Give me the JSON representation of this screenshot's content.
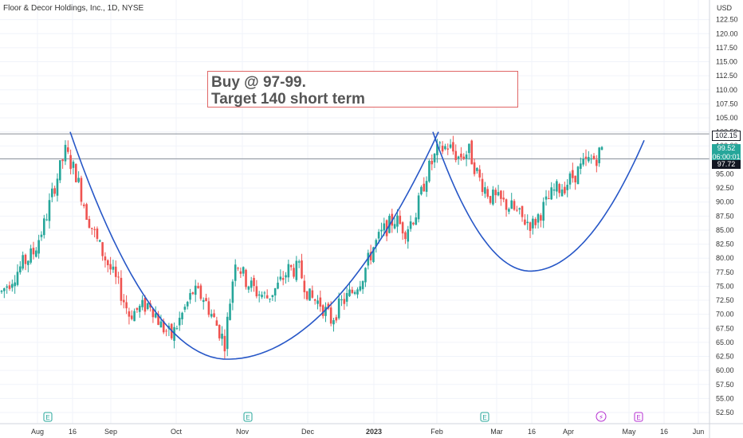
{
  "header": {
    "symbol_title": "Floor & Decor Holdings, Inc., 1D, NYSE",
    "currency": "USD"
  },
  "annotation": {
    "line1": "Buy @ 97-99.",
    "line2": "Target 140 short term"
  },
  "price_tags": {
    "resistance": {
      "value": "102.15",
      "bg": "#ffffff",
      "color": "#131722"
    },
    "last": {
      "value": "99.52",
      "countdown": "06:00:01",
      "bg": "#26a69a",
      "color": "#ffffff"
    },
    "support": {
      "value": "97.72",
      "bg": "#131722",
      "color": "#ffffff"
    }
  },
  "colors": {
    "up": "#26a69a",
    "down": "#ef5350",
    "pattern": "#2757c7",
    "grid": "#f0f3fa",
    "hline": "#8a8f98"
  },
  "chart_data": {
    "type": "candlestick",
    "ylim": [
      50.8,
      126.0
    ],
    "y_ticks": [
      52.5,
      55.0,
      57.5,
      60.0,
      62.5,
      65.0,
      67.5,
      70.0,
      72.5,
      75.0,
      77.5,
      80.0,
      82.5,
      85.0,
      87.5,
      90.0,
      92.5,
      95.0,
      97.5,
      100.0,
      102.5,
      105.0,
      107.5,
      110.0,
      112.5,
      115.0,
      117.5,
      120.0,
      122.5
    ],
    "x_labels": [
      "Aug",
      "16",
      "Sep",
      "Oct",
      "Nov",
      "Dec",
      "2023",
      "Feb",
      "Mar",
      "16",
      "Apr",
      "May",
      "16",
      "Jun"
    ],
    "horizontal_levels": [
      102.15,
      97.72
    ],
    "earnings_markers": [
      "E",
      "E",
      "E",
      "E"
    ],
    "event_marker": "⚡",
    "cup_and_handle": {
      "left_rim": 102.5,
      "cup_bottom": 62.0,
      "right_rim": 102.5,
      "handle_bottom": 77.7,
      "projection_end": 101.0
    },
    "anchors": [
      [
        0,
        74.0
      ],
      [
        8,
        79.0
      ],
      [
        12,
        81.0
      ],
      [
        16,
        86.0
      ],
      [
        20,
        93.0
      ],
      [
        24,
        99.0
      ],
      [
        28,
        95.0
      ],
      [
        32,
        88.0
      ],
      [
        36,
        83.0
      ],
      [
        40,
        79.0
      ],
      [
        44,
        75.0
      ],
      [
        48,
        70.0
      ],
      [
        52,
        71.0
      ],
      [
        56,
        72.0
      ],
      [
        60,
        68.0
      ],
      [
        64,
        66.0
      ],
      [
        68,
        70.0
      ],
      [
        72,
        74.0
      ],
      [
        76,
        73.0
      ],
      [
        80,
        69.0
      ],
      [
        84,
        65.0
      ],
      [
        88,
        80.0
      ],
      [
        92,
        76.0
      ],
      [
        96,
        74.0
      ],
      [
        100,
        73.0
      ],
      [
        104,
        75.0
      ],
      [
        108,
        78.0
      ],
      [
        112,
        78.0
      ],
      [
        116,
        73.0
      ],
      [
        120,
        72.0
      ],
      [
        124,
        69.0
      ],
      [
        128,
        72.0
      ],
      [
        132,
        74.0
      ],
      [
        136,
        77.0
      ],
      [
        140,
        82.0
      ],
      [
        144,
        85.0
      ],
      [
        148,
        87.0
      ],
      [
        152,
        85.0
      ],
      [
        156,
        88.0
      ],
      [
        160,
        95.0
      ],
      [
        164,
        99.0
      ],
      [
        168,
        100.0
      ],
      [
        172,
        98.0
      ],
      [
        176,
        99.0
      ],
      [
        180,
        94.0
      ],
      [
        184,
        91.0
      ],
      [
        188,
        90.0
      ],
      [
        192,
        89.0
      ],
      [
        196,
        87.0
      ],
      [
        200,
        86.0
      ],
      [
        204,
        89.0
      ],
      [
        208,
        92.0
      ],
      [
        212,
        93.0
      ],
      [
        216,
        95.0
      ],
      [
        220,
        97.0
      ],
      [
        224,
        98.0
      ],
      [
        226,
        99.5
      ]
    ]
  }
}
